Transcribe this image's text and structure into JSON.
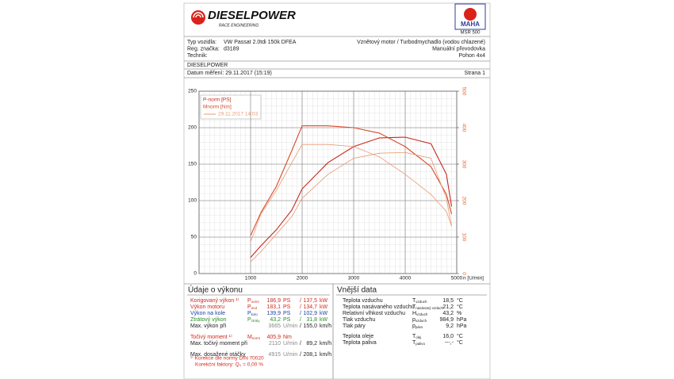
{
  "header": {
    "brand": "DIESELPOWER",
    "brand_sub": "RACE ENGINEERING",
    "maha": "MAHA",
    "device": "MSR 500"
  },
  "vehicle": {
    "rows": [
      {
        "label": "Typ vozidla:",
        "value": "VW Passat 2.0tdi 150k DFEA"
      },
      {
        "label": "Reg. značka:",
        "value": "d3189"
      },
      {
        "label": "Technik:"
      }
    ],
    "details": [
      "Vznětový motor / Turbodmychadlo (vodou chlazené)",
      "Manuální převodovka",
      "Pohon 4x4"
    ]
  },
  "company": "DIESELPOWER",
  "measurement": {
    "date": "Datum měření: 29.11.2017 (15:19)",
    "page": "Strana 1"
  },
  "chart_data": {
    "type": "line",
    "x_label": "n [U/min]",
    "x": [
      1000,
      1200,
      1500,
      1800,
      2000,
      2500,
      3000,
      3500,
      4000,
      4500,
      4800,
      4900
    ],
    "xlim": [
      0,
      5000
    ],
    "xticks": [
      1000,
      2000,
      3000,
      4000,
      5000
    ],
    "ylim": [
      0,
      250
    ],
    "yticks": [
      0,
      50,
      100,
      150,
      200,
      250
    ],
    "y2lim": [
      0,
      500
    ],
    "y2ticks": [
      0,
      100,
      200,
      300,
      400,
      500
    ],
    "grid": true,
    "series": [
      {
        "name": "P-norm [PS]",
        "color": "#c8281e",
        "values": [
          22,
          38,
          60,
          87,
          116,
          152,
          174,
          186,
          187,
          178,
          136,
          92
        ]
      },
      {
        "name": "Mnorm [Nm]",
        "color": "#d84a2a",
        "axis": "y2",
        "values": [
          104,
          167,
          239,
          337,
          405,
          405,
          400,
          385,
          348,
          293,
          217,
          163
        ]
      },
      {
        "name": "29.11.2017 14:03",
        "color": "#e99a72",
        "values": [
          16,
          30,
          54,
          78,
          103,
          136,
          158,
          165,
          166,
          158,
          103,
          65
        ]
      },
      {
        "color": "#e99a72",
        "axis": "y2",
        "values": [
          87,
          163,
          228,
          304,
          354,
          354,
          348,
          320,
          272,
          217,
          170,
          130
        ]
      }
    ]
  },
  "performance": {
    "title": "Údaje o výkonu",
    "rows": [
      {
        "label": "Korigovaný výkon ¹⁾",
        "color": "#d02a1e",
        "sym": "P",
        "sub": "norm",
        "v1": "186,9",
        "u1": "PS",
        "sep": "/",
        "v2": "137,5",
        "u2": "kW"
      },
      {
        "label": "Výkon motoru",
        "color": "#d02a1e",
        "sym": "P",
        "sub": "mot",
        "v1": "183,1",
        "u1": "PS",
        "sep": "/",
        "v2": "134,7",
        "u2": "kW"
      },
      {
        "label": "Výkon na kole",
        "color": "#1c3fa8",
        "sym": "P",
        "sub": "kolo",
        "v1": "139,9",
        "u1": "PS",
        "sep": "/",
        "v2": "102,9",
        "u2": "kW"
      },
      {
        "label": "Ztrátový výkon",
        "color": "#2a8a2a",
        "sym": "P",
        "sub": "ztráty",
        "v1": "43,2",
        "u1": "PS",
        "sep": "/",
        "v2": "31,8",
        "u2": "kW"
      },
      {
        "label": "Max. výkon při",
        "color": "#222",
        "v1": "3665",
        "u1": "U/min",
        "sep": "/",
        "v2": "155,0",
        "u2": "km/h"
      },
      {
        "label": "Točivý moment ¹⁾",
        "color": "#d02a1e",
        "sym": "M",
        "sub": "norm",
        "v1": "405,9",
        "u1": "Nm"
      },
      {
        "label": "Max. točivý moment při",
        "color": "#222",
        "v1": "2110",
        "u1": "U/min",
        "sep": "/",
        "v2": "89,2",
        "u2": "km/h"
      },
      {
        "label": "Max. dosažené otáčky",
        "color": "#222",
        "v1": "4915",
        "u1": "U/min",
        "sep": "/",
        "v2": "208,1",
        "u2": "km/h"
      }
    ],
    "notes": [
      "¹⁾ Korekce dle normy DIN 70020",
      "Korekční faktory: Q₀ =  0,00 %"
    ]
  },
  "external": {
    "title": "Vnější data",
    "rows": [
      {
        "label": "Teplota vzduchu",
        "sym": "T",
        "sub": "vzduch",
        "value": "18,5",
        "unit": "°C"
      },
      {
        "label": "Teplota nasávaného vzduchu",
        "sym": "T",
        "sub": "nasávaný vzduch",
        "value": "21,2",
        "unit": "°C"
      },
      {
        "label": "Relativní vlhkost vzduchu",
        "sym": "H",
        "sub": "vzduch",
        "value": "43,2",
        "unit": "%"
      },
      {
        "label": "Tlak vzduchu",
        "sym": "p",
        "sub": "vzduch",
        "value": "984,9",
        "unit": "hPa"
      },
      {
        "label": "Tlak páry",
        "sym": "p",
        "sub": "pára",
        "value": "9,2",
        "unit": "hPa"
      },
      {
        "label": "Teplota oleje",
        "sym": "T",
        "sub": "olej",
        "value": "16,0",
        "unit": "°C"
      },
      {
        "label": "Teplota paliva",
        "sym": "T",
        "sub": "palivo",
        "value": "---,-",
        "unit": "°C"
      }
    ]
  }
}
